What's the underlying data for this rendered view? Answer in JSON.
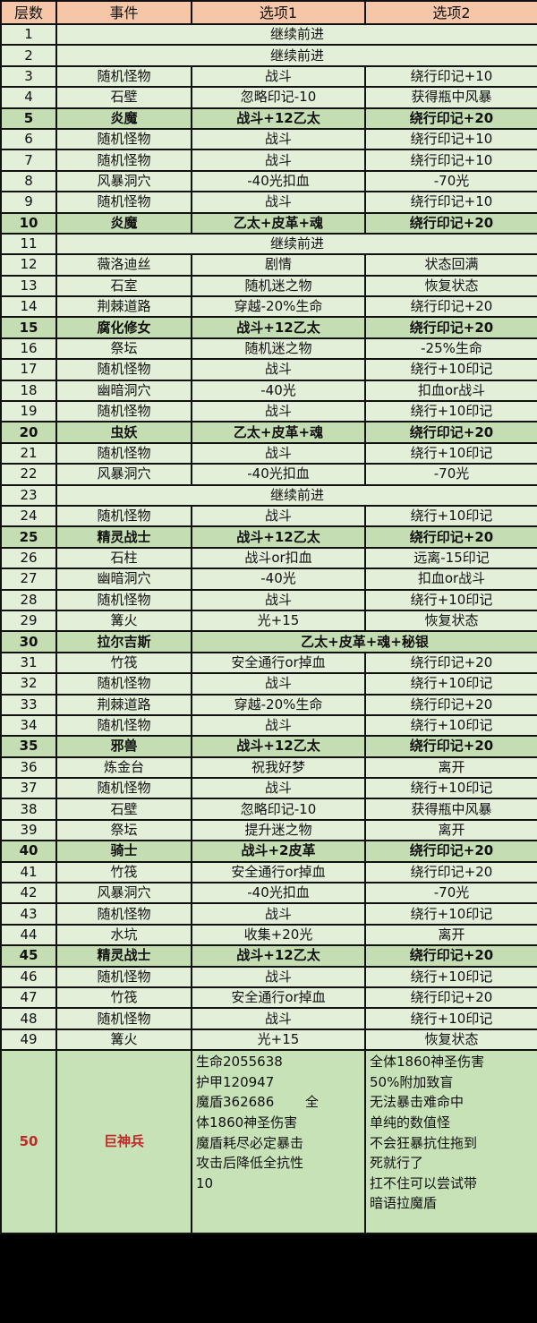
{
  "header": {
    "floor": "层数",
    "event": "事件",
    "option1": "选项1",
    "option2": "选项2"
  },
  "colors": {
    "header_bg": "#f6c6a8",
    "row_bg": "#e4efda",
    "boss_row_bg": "#c5ddb2",
    "final_text": "#c0282a"
  },
  "rows": [
    {
      "floor": "1",
      "merged": "继续前进"
    },
    {
      "floor": "2",
      "merged": "继续前进"
    },
    {
      "floor": "3",
      "event": "随机怪物",
      "opt1": "战斗",
      "opt2": "绕行印记+10"
    },
    {
      "floor": "4",
      "event": "石壁",
      "opt1": "忽略印记-10",
      "opt2": "获得瓶中风暴"
    },
    {
      "floor": "5",
      "event": "炎魔",
      "opt1": "战斗+12乙太",
      "opt2": "绕行印记+20",
      "bold": true
    },
    {
      "floor": "6",
      "event": "随机怪物",
      "opt1": "战斗",
      "opt2": "绕行印记+10"
    },
    {
      "floor": "7",
      "event": "随机怪物",
      "opt1": "战斗",
      "opt2": "绕行印记+10"
    },
    {
      "floor": "8",
      "event": "风暴洞穴",
      "opt1": "-40光扣血",
      "opt2": "-70光"
    },
    {
      "floor": "9",
      "event": "随机怪物",
      "opt1": "战斗",
      "opt2": "绕行印记+10"
    },
    {
      "floor": "10",
      "event": "炎魔",
      "opt1": "乙太+皮革+魂",
      "opt2": "绕行印记+20",
      "bold": true
    },
    {
      "floor": "11",
      "merged": "继续前进"
    },
    {
      "floor": "12",
      "event": "薇洛迪丝",
      "opt1": "剧情",
      "opt2": "状态回满"
    },
    {
      "floor": "13",
      "event": "石室",
      "opt1": "随机迷之物",
      "opt2": "恢复状态"
    },
    {
      "floor": "14",
      "event": "荆棘道路",
      "opt1": "穿越-20%生命",
      "opt2": "绕行印记+20"
    },
    {
      "floor": "15",
      "event": "腐化修女",
      "opt1": "战斗+12乙太",
      "opt2": "绕行印记+20",
      "bold": true
    },
    {
      "floor": "16",
      "event": "祭坛",
      "opt1": "随机迷之物",
      "opt2": "-25%生命"
    },
    {
      "floor": "17",
      "event": "随机怪物",
      "opt1": "战斗",
      "opt2": "绕行+10印记"
    },
    {
      "floor": "18",
      "event": "幽暗洞穴",
      "opt1": "-40光",
      "opt2": "扣血or战斗"
    },
    {
      "floor": "19",
      "event": "随机怪物",
      "opt1": "战斗",
      "opt2": "绕行+10印记"
    },
    {
      "floor": "20",
      "event": "虫妖",
      "opt1": "乙太+皮革+魂",
      "opt2": "绕行印记+20",
      "bold": true
    },
    {
      "floor": "21",
      "event": "随机怪物",
      "opt1": "战斗",
      "opt2": "绕行+10印记"
    },
    {
      "floor": "22",
      "event": "风暴洞穴",
      "opt1": "-40光扣血",
      "opt2": "-70光"
    },
    {
      "floor": "23",
      "merged": "继续前进"
    },
    {
      "floor": "24",
      "event": "随机怪物",
      "opt1": "战斗",
      "opt2": "绕行+10印记"
    },
    {
      "floor": "25",
      "event": "精灵战士",
      "opt1": "战斗+12乙太",
      "opt2": "绕行印记+20",
      "bold": true
    },
    {
      "floor": "26",
      "event": "石柱",
      "opt1": "战斗or扣血",
      "opt2": "远离-15印记"
    },
    {
      "floor": "27",
      "event": "幽暗洞穴",
      "opt1": "-40光",
      "opt2": "扣血or战斗"
    },
    {
      "floor": "28",
      "event": "随机怪物",
      "opt1": "战斗",
      "opt2": "绕行+10印记"
    },
    {
      "floor": "29",
      "event": "篝火",
      "opt1": "光+15",
      "opt2": "恢复状态"
    },
    {
      "floor": "30",
      "event": "拉尔吉斯",
      "opts_merged": "乙太+皮革+魂+秘银",
      "bold": true
    },
    {
      "floor": "31",
      "event": "竹筏",
      "opt1": "安全通行or掉血",
      "opt2": "绕行印记+20"
    },
    {
      "floor": "32",
      "event": "随机怪物",
      "opt1": "战斗",
      "opt2": "绕行+10印记"
    },
    {
      "floor": "33",
      "event": "荆棘道路",
      "opt1": "穿越-20%生命",
      "opt2": "绕行印记+20"
    },
    {
      "floor": "34",
      "event": "随机怪物",
      "opt1": "战斗",
      "opt2": "绕行+10印记"
    },
    {
      "floor": "35",
      "event": "邪兽",
      "opt1": "战斗+12乙太",
      "opt2": "绕行印记+20",
      "bold": true
    },
    {
      "floor": "36",
      "event": "炼金台",
      "opt1": "祝我好梦",
      "opt2": "离开"
    },
    {
      "floor": "37",
      "event": "随机怪物",
      "opt1": "战斗",
      "opt2": "绕行+10印记"
    },
    {
      "floor": "38",
      "event": "石壁",
      "opt1": "忽略印记-10",
      "opt2": "获得瓶中风暴"
    },
    {
      "floor": "39",
      "event": "祭坛",
      "opt1": "提升迷之物",
      "opt2": "离开"
    },
    {
      "floor": "40",
      "event": "骑士",
      "opt1": "战斗+2皮革",
      "opt2": "绕行印记+20",
      "bold": true
    },
    {
      "floor": "41",
      "event": "竹筏",
      "opt1": "安全通行or掉血",
      "opt2": "绕行印记+20"
    },
    {
      "floor": "42",
      "event": "风暴洞穴",
      "opt1": "-40光扣血",
      "opt2": "-70光"
    },
    {
      "floor": "43",
      "event": "随机怪物",
      "opt1": "战斗",
      "opt2": "绕行+10印记"
    },
    {
      "floor": "44",
      "event": "水坑",
      "opt1": "收集+20光",
      "opt2": "离开"
    },
    {
      "floor": "45",
      "event": "精灵战士",
      "opt1": "战斗+12乙太",
      "opt2": "绕行印记+20",
      "bold": true
    },
    {
      "floor": "46",
      "event": "随机怪物",
      "opt1": "战斗",
      "opt2": "绕行+10印记"
    },
    {
      "floor": "47",
      "event": "竹筏",
      "opt1": "安全通行or掉血",
      "opt2": "绕行印记+20"
    },
    {
      "floor": "48",
      "event": "随机怪物",
      "opt1": "战斗",
      "opt2": "绕行+10印记"
    },
    {
      "floor": "49",
      "event": "篝火",
      "opt1": "光+15",
      "opt2": "恢复状态"
    }
  ],
  "final": {
    "floor": "50",
    "event": "巨神兵",
    "opt1_lines": [
      "生命2055638",
      "护甲120947",
      "魔盾362686　　 全",
      "体1860神圣伤害",
      "魔盾耗尽必定暴击",
      "攻击后降低全抗性",
      "10"
    ],
    "opt2_lines": [
      "全体1860神圣伤害",
      "50%附加致盲",
      "无法暴击难命中",
      "单纯的数值怪",
      "不会狂暴抗住拖到",
      "死就行了",
      "扛不住可以尝试带",
      "暗语拉魔盾"
    ]
  }
}
